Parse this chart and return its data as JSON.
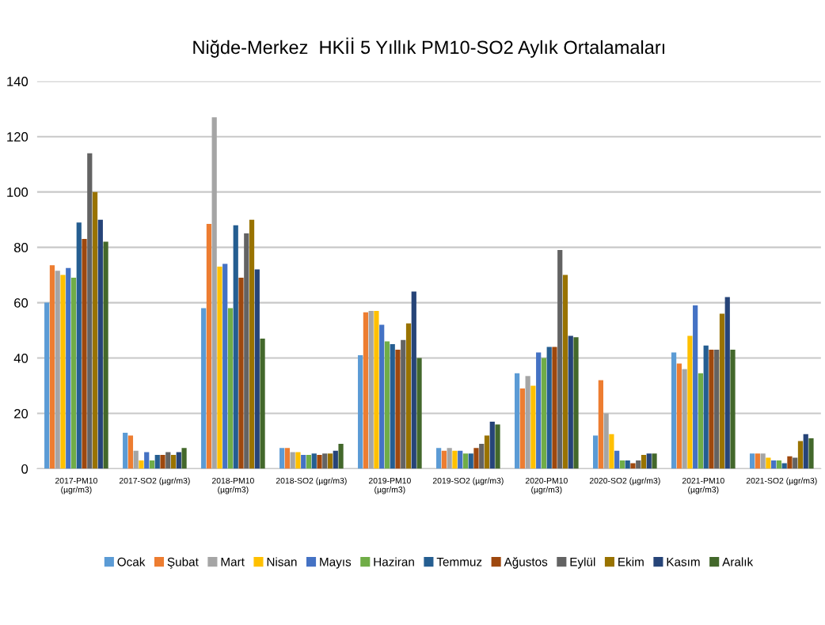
{
  "chart_data": {
    "type": "bar",
    "title": "Niğde-Merkez  HKİİ 5 Yıllık PM10-SO2 Aylık Ortalamaları",
    "categories": [
      "2017-PM10\n(µgr/m3)",
      "2017-SO2 (µgr/m3)",
      "2018-PM10\n(µgr/m3)",
      "2018-SO2 (µgr/m3)",
      "2019-PM10\n(µgr/m3)",
      "2019-SO2 (µgr/m3)",
      "2020-PM10\n(µgr/m3)",
      "2020-SO2 (µgr/m3)",
      "2021-PM10\n(µgr/m3)",
      "2021-SO2 (µgr/m3)"
    ],
    "series": [
      {
        "name": "Ocak",
        "color": "#5b9bd5",
        "values": [
          60,
          13,
          58,
          7.5,
          41,
          7.5,
          34.5,
          12,
          42,
          5.5
        ]
      },
      {
        "name": "Şubat",
        "color": "#ed7d31",
        "values": [
          73.5,
          12,
          88.5,
          7.5,
          56.5,
          6.5,
          29,
          32,
          38,
          5.5
        ]
      },
      {
        "name": "Mart",
        "color": "#a5a5a5",
        "values": [
          71.5,
          6.5,
          127,
          6,
          57,
          7.5,
          33.5,
          20,
          36,
          5.5
        ]
      },
      {
        "name": "Nisan",
        "color": "#ffc000",
        "values": [
          70,
          3,
          73,
          6,
          57,
          6.5,
          30,
          12.5,
          48,
          4
        ]
      },
      {
        "name": "Mayıs",
        "color": "#4472c4",
        "values": [
          72.5,
          6,
          74,
          5,
          52,
          6.5,
          42,
          6.5,
          59,
          3
        ]
      },
      {
        "name": "Haziran",
        "color": "#70ad47",
        "values": [
          69,
          3,
          58,
          5,
          46,
          5.5,
          40,
          3,
          34.5,
          3
        ]
      },
      {
        "name": "Temmuz",
        "color": "#255e91",
        "values": [
          89,
          5,
          88,
          5.5,
          45,
          5.5,
          44,
          3,
          44.5,
          2
        ]
      },
      {
        "name": "Ağustos",
        "color": "#9e480e",
        "values": [
          83,
          5,
          69,
          5,
          43,
          7.5,
          44,
          2,
          43,
          4.5
        ]
      },
      {
        "name": "Eylül",
        "color": "#636363",
        "values": [
          114,
          6,
          85,
          5.5,
          46.5,
          9,
          79,
          3,
          43,
          4
        ]
      },
      {
        "name": "Ekim",
        "color": "#997300",
        "values": [
          100,
          5,
          90,
          5.5,
          52.5,
          12,
          70,
          5,
          56,
          10
        ]
      },
      {
        "name": "Kasım",
        "color": "#264478",
        "values": [
          90,
          6,
          72,
          6.5,
          64,
          17,
          48,
          5.5,
          62,
          12.5
        ]
      },
      {
        "name": "Aralık",
        "color": "#43682b",
        "values": [
          82,
          7.5,
          47,
          9,
          40,
          16,
          47.5,
          5.5,
          43,
          11
        ]
      }
    ],
    "ylim": [
      0,
      140
    ],
    "yticks": [
      0,
      20,
      40,
      60,
      80,
      100,
      120,
      140
    ],
    "grid": "y",
    "legend": "bottom"
  }
}
